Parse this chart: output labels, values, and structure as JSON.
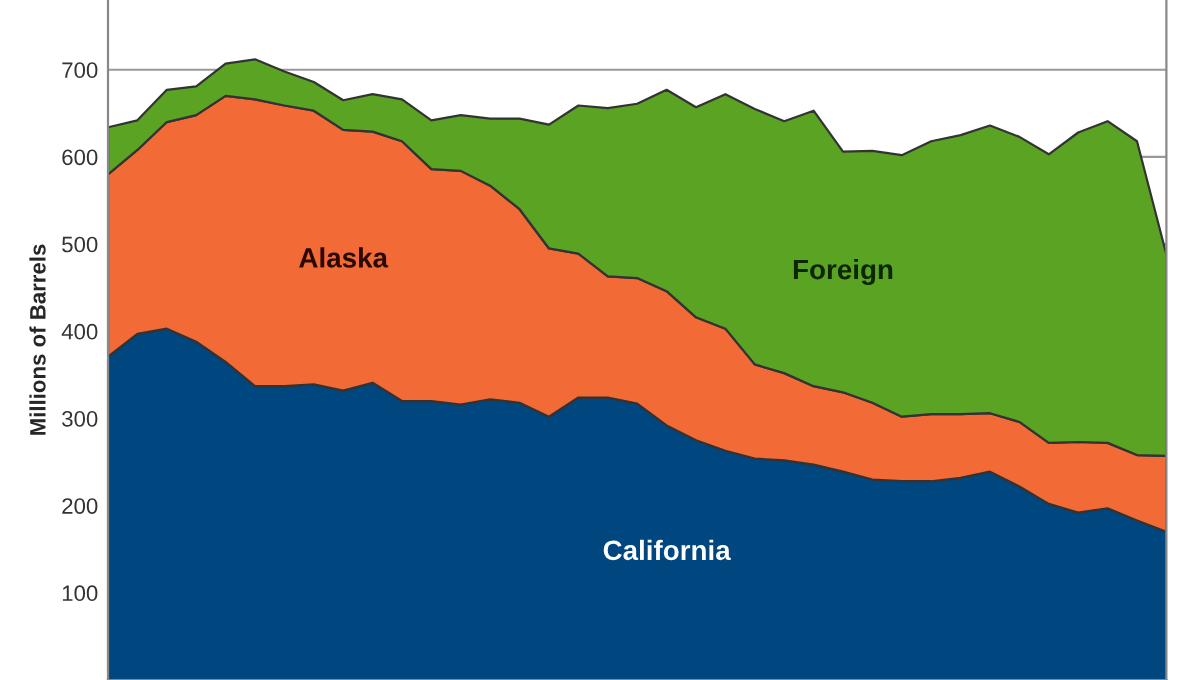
{
  "chart_data": {
    "type": "area",
    "stacked": true,
    "ylabel": "Millions of Barrels",
    "categories": [
      null,
      null,
      null,
      null,
      null,
      null,
      null,
      null,
      null,
      null,
      null,
      null,
      null,
      null,
      null,
      null,
      null,
      null,
      null,
      null,
      null,
      null,
      null,
      null,
      null,
      null,
      null,
      null,
      null,
      null,
      null,
      null,
      null,
      null,
      null,
      null,
      null
    ],
    "series": [
      {
        "name": "California",
        "color": "#00467f",
        "values": [
          371,
          397,
          403,
          388,
          365,
          337,
          337,
          339,
          332,
          341,
          320,
          320,
          316,
          322,
          318,
          302,
          324,
          324,
          317,
          292,
          275,
          263,
          254,
          252,
          247,
          239,
          230,
          228,
          228,
          232,
          239,
          222,
          202,
          192,
          197,
          183,
          170
        ]
      },
      {
        "name": "Alaska",
        "color": "#f26a35",
        "values": [
          209,
          211,
          237,
          260,
          305,
          329,
          322,
          314,
          299,
          288,
          298,
          266,
          268,
          245,
          222,
          193,
          165,
          139,
          144,
          154,
          141,
          140,
          108,
          100,
          90,
          91,
          88,
          74,
          77,
          73,
          67,
          74,
          70,
          81,
          75,
          75,
          87
        ]
      },
      {
        "name": "Foreign",
        "color": "#5ba323",
        "values": [
          54,
          34,
          37,
          33,
          37,
          46,
          39,
          33,
          34,
          43,
          48,
          56,
          64,
          77,
          104,
          142,
          170,
          193,
          200,
          231,
          241,
          269,
          293,
          289,
          316,
          276,
          289,
          300,
          313,
          320,
          330,
          327,
          331,
          355,
          369,
          360,
          231
        ]
      }
    ],
    "ylim": [
      0,
      780
    ],
    "yticks": [
      100,
      200,
      300,
      400,
      500,
      600,
      700
    ],
    "grid": "y",
    "legend": false,
    "tick_labels": "y"
  }
}
